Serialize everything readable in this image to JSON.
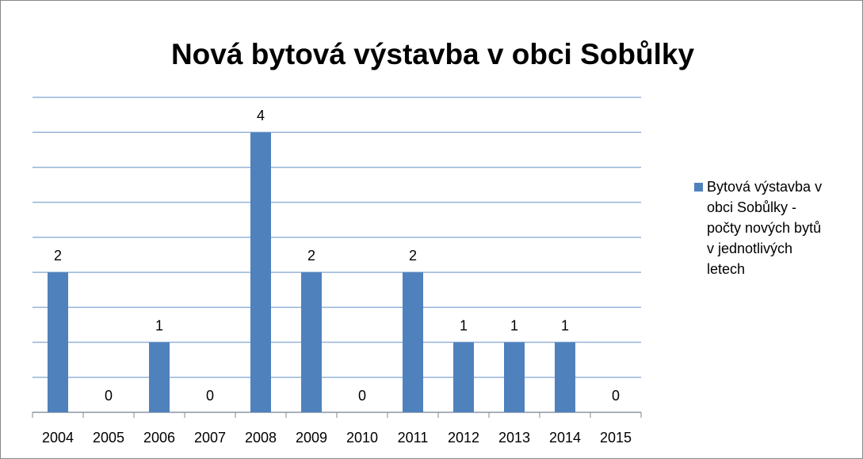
{
  "chart_data": {
    "type": "bar",
    "title": "Nová bytová výstavba v obci Sobůlky",
    "categories": [
      "2004",
      "2005",
      "2006",
      "2007",
      "2008",
      "2009",
      "2010",
      "2011",
      "2012",
      "2013",
      "2014",
      "2015"
    ],
    "series": [
      {
        "name": "Bytová výstavba v obci Sobůlky - počty nových bytů v jednotlivých letech",
        "color": "#4f81bd",
        "values": [
          2,
          0,
          1,
          0,
          4,
          2,
          0,
          2,
          1,
          1,
          1,
          0
        ]
      }
    ],
    "ylim": [
      0,
      4.5
    ],
    "yticks": [
      0,
      0.5,
      1,
      1.5,
      2,
      2.5,
      3,
      3.5,
      4,
      4.5
    ],
    "grid": true,
    "legend": "right"
  }
}
